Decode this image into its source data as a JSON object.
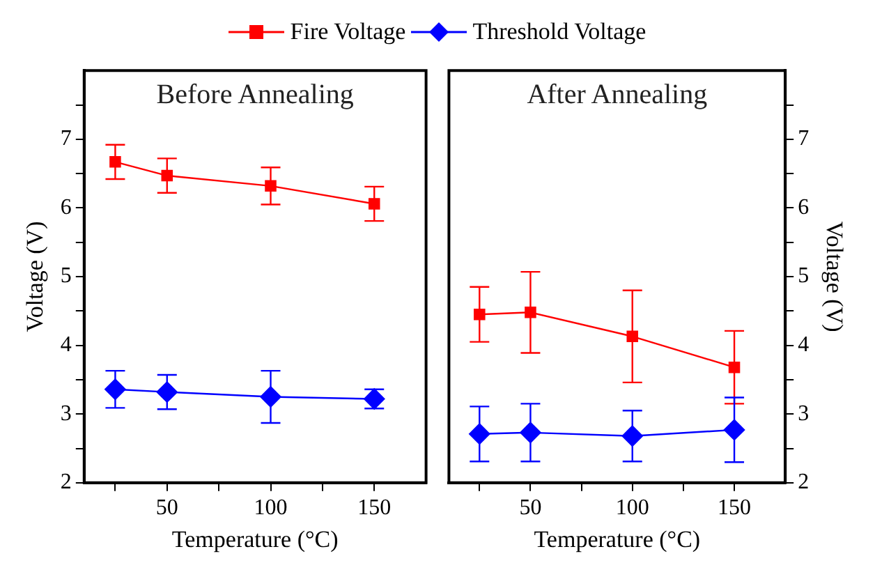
{
  "chart_data": [
    {
      "type": "line",
      "title": "Before Annealing",
      "xlabel": "Temperature (°C)",
      "ylabel": "Voltage (V)",
      "x": [
        25,
        50,
        100,
        150
      ],
      "legend": "top",
      "grid": false,
      "xlim": [
        10,
        175
      ],
      "ylim": [
        2,
        8
      ],
      "xticks": [
        {
          "value": 25,
          "label": null
        },
        50,
        {
          "value": 75,
          "label": null
        },
        100,
        {
          "value": 125,
          "label": null
        },
        150
      ],
      "yticks": [
        2,
        {
          "value": 2.5,
          "label": null
        },
        3,
        {
          "value": 3.5,
          "label": null
        },
        4,
        {
          "value": 4.5,
          "label": null
        },
        5,
        {
          "value": 5.5,
          "label": null
        },
        6,
        {
          "value": 6.5,
          "label": null
        },
        7,
        {
          "value": 7.5,
          "label": null
        }
      ],
      "series": [
        {
          "name": "Fire Voltage",
          "color": "#ff0000",
          "marker": "square",
          "values": [
            6.67,
            6.47,
            6.32,
            6.06
          ],
          "errors": [
            0.25,
            0.25,
            0.27,
            0.25
          ]
        },
        {
          "name": "Threshold Voltage",
          "color": "#0000ff",
          "marker": "diamond",
          "values": [
            3.36,
            3.32,
            3.25,
            3.22
          ],
          "errors": [
            0.27,
            0.25,
            0.38,
            0.14
          ]
        }
      ]
    },
    {
      "type": "line",
      "title": "After Annealing",
      "xlabel": "Temperature (°C)",
      "ylabel": "Voltage (V)",
      "x": [
        25,
        50,
        100,
        150
      ],
      "grid": false,
      "xlim": [
        10,
        175
      ],
      "ylim": [
        2,
        8
      ],
      "xticks": [
        {
          "value": 25,
          "label": null
        },
        50,
        {
          "value": 75,
          "label": null
        },
        100,
        {
          "value": 125,
          "label": null
        },
        150
      ],
      "yticks": [
        2,
        {
          "value": 2.5,
          "label": null
        },
        3,
        {
          "value": 3.5,
          "label": null
        },
        4,
        {
          "value": 4.5,
          "label": null
        },
        5,
        {
          "value": 5.5,
          "label": null
        },
        6,
        {
          "value": 6.5,
          "label": null
        },
        7,
        {
          "value": 7.5,
          "label": null
        }
      ],
      "series": [
        {
          "color": "#ff0000",
          "marker": "square",
          "values": [
            4.45,
            4.48,
            4.13,
            3.68
          ],
          "errors": [
            0.4,
            0.59,
            0.67,
            0.53
          ]
        },
        {
          "color": "#0000ff",
          "marker": "diamond",
          "values": [
            2.71,
            2.73,
            2.68,
            2.77
          ],
          "errors": [
            0.4,
            0.42,
            0.37,
            0.47
          ]
        }
      ]
    }
  ]
}
